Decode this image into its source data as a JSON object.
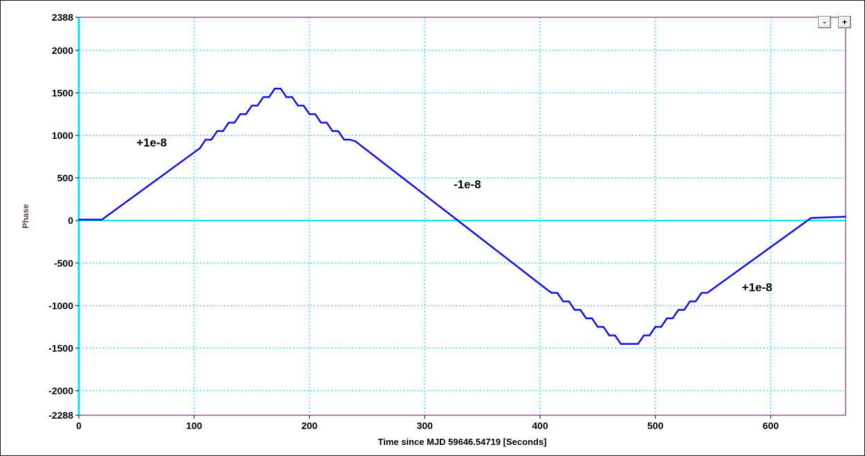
{
  "colors": {
    "axis": "#00e5ff",
    "grid": "#4dd8ff",
    "border": "#8a5a8a",
    "line": "#1010e0"
  },
  "controls": {
    "zoom_out_label": "-",
    "zoom_in_label": "+"
  },
  "chart_data": {
    "type": "line",
    "xlabel": "Time since MJD 59646.54719 [Seconds]",
    "ylabel": "Phase",
    "xlim": [
      0,
      665
    ],
    "ylim": [
      -2288,
      2388
    ],
    "x_ticks": [
      0,
      100,
      200,
      300,
      400,
      500,
      600
    ],
    "y_ticks": [
      2388,
      2000,
      1500,
      1000,
      500,
      0,
      -500,
      -1000,
      -1500,
      -2000,
      -2288
    ],
    "grid": true,
    "series": [
      {
        "x": [
          0,
          20,
          105,
          110,
          115,
          120,
          125,
          130,
          135,
          140,
          145,
          150,
          155,
          160,
          165,
          170,
          175,
          180,
          185,
          190,
          195,
          200,
          205,
          210,
          215,
          220,
          225,
          230,
          235,
          240,
          405,
          410,
          415,
          420,
          425,
          430,
          435,
          440,
          445,
          450,
          455,
          460,
          465,
          470,
          475,
          480,
          485,
          490,
          495,
          500,
          505,
          510,
          515,
          520,
          525,
          530,
          535,
          540,
          545,
          635,
          665
        ],
        "y": [
          10,
          10,
          850,
          950,
          950,
          1050,
          1050,
          1150,
          1150,
          1250,
          1250,
          1350,
          1350,
          1450,
          1450,
          1550,
          1550,
          1450,
          1450,
          1350,
          1350,
          1250,
          1250,
          1150,
          1150,
          1050,
          1050,
          950,
          950,
          930,
          -800,
          -850,
          -850,
          -950,
          -950,
          -1050,
          -1050,
          -1150,
          -1150,
          -1250,
          -1250,
          -1350,
          -1350,
          -1450,
          -1450,
          -1450,
          -1450,
          -1350,
          -1350,
          -1250,
          -1250,
          -1150,
          -1150,
          -1050,
          -1050,
          -950,
          -950,
          -850,
          -850,
          30,
          45
        ]
      }
    ],
    "annotations": [
      {
        "text": "+1e-8",
        "x": 50,
        "y": 870
      },
      {
        "text": "-1e-8",
        "x": 325,
        "y": 380
      },
      {
        "text": "+1e-8",
        "x": 575,
        "y": -830
      }
    ]
  }
}
